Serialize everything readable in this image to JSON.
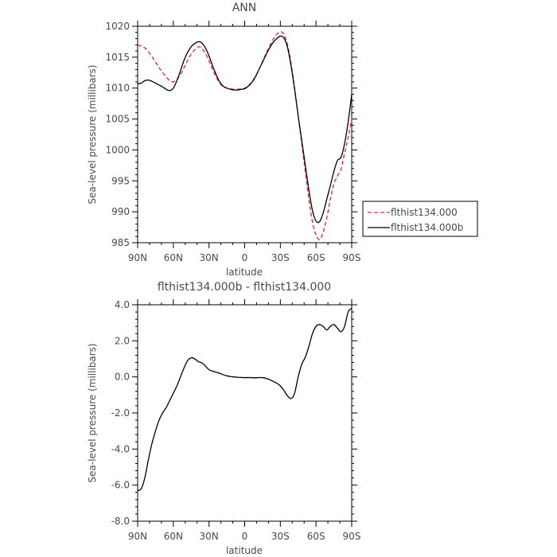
{
  "chart_data": [
    {
      "type": "line",
      "title": "ANN",
      "xlabel": "latitude",
      "ylabel": "Sea-level pressure (millibars)",
      "xlim": [
        90,
        -90
      ],
      "ylim": [
        985,
        1020
      ],
      "xticks": [
        {
          "value": 90,
          "label": "90N"
        },
        {
          "value": 60,
          "label": "60N"
        },
        {
          "value": 30,
          "label": "30N"
        },
        {
          "value": 0,
          "label": "0"
        },
        {
          "value": -30,
          "label": "30S"
        },
        {
          "value": -60,
          "label": "60S"
        },
        {
          "value": -90,
          "label": "90S"
        }
      ],
      "yticks": [
        {
          "value": 1020,
          "label": "1020"
        },
        {
          "value": 1015,
          "label": "1015"
        },
        {
          "value": 1010,
          "label": "1010"
        },
        {
          "value": 1005,
          "label": "1005"
        },
        {
          "value": 1000,
          "label": "1000"
        },
        {
          "value": 995,
          "label": "995"
        },
        {
          "value": 990,
          "label": "990"
        },
        {
          "value": 985,
          "label": "985"
        }
      ],
      "legend_position": "right",
      "series": [
        {
          "name": "flthist134.000",
          "color": "#e8262a",
          "dash": "dashed",
          "x": [
            90,
            87,
            84,
            81,
            78,
            75,
            72,
            69,
            66,
            63,
            60,
            57,
            54,
            51,
            48,
            45,
            42,
            39,
            36,
            33,
            30,
            27,
            24,
            21,
            18,
            15,
            12,
            9,
            6,
            3,
            0,
            -3,
            -6,
            -9,
            -12,
            -15,
            -18,
            -21,
            -24,
            -27,
            -30,
            -33,
            -36,
            -39,
            -42,
            -45,
            -48,
            -51,
            -54,
            -57,
            -60,
            -63,
            -66,
            -69,
            -72,
            -75,
            -78,
            -81,
            -84,
            -87,
            -90
          ],
          "y": [
            1017.0,
            1016.8,
            1016.5,
            1015.9,
            1015.1,
            1014.2,
            1013.3,
            1012.5,
            1011.8,
            1011.2,
            1011.0,
            1011.4,
            1012.2,
            1013.3,
            1014.5,
            1015.5,
            1016.2,
            1016.7,
            1016.4,
            1015.6,
            1014.4,
            1013.0,
            1011.8,
            1010.8,
            1010.2,
            1010.0,
            1009.9,
            1009.8,
            1009.8,
            1009.9,
            1010.0,
            1010.4,
            1011.0,
            1011.9,
            1013.0,
            1014.3,
            1015.6,
            1016.8,
            1017.9,
            1018.7,
            1019.1,
            1018.7,
            1017.0,
            1014.0,
            1010.0,
            1005.5,
            1001.0,
            996.5,
            992.0,
            988.3,
            986.2,
            985.5,
            986.7,
            989.0,
            992.0,
            994.5,
            995.8,
            996.9,
            999.5,
            1002.0,
            1005.0
          ]
        },
        {
          "name": "flthist134.000b",
          "color": "#000000",
          "dash": "solid",
          "x": [
            90,
            87,
            84,
            81,
            78,
            75,
            72,
            69,
            66,
            63,
            60,
            57,
            54,
            51,
            48,
            45,
            42,
            39,
            36,
            33,
            30,
            27,
            24,
            21,
            18,
            15,
            12,
            9,
            6,
            3,
            0,
            -3,
            -6,
            -9,
            -12,
            -15,
            -18,
            -21,
            -24,
            -27,
            -30,
            -33,
            -36,
            -39,
            -42,
            -45,
            -48,
            -51,
            -54,
            -57,
            -60,
            -63,
            -66,
            -69,
            -72,
            -75,
            -78,
            -81,
            -84,
            -87,
            -90
          ],
          "y": [
            1010.7,
            1010.8,
            1011.2,
            1011.3,
            1011.1,
            1010.8,
            1010.5,
            1010.2,
            1009.8,
            1009.6,
            1010.0,
            1011.2,
            1012.8,
            1014.5,
            1015.8,
            1016.7,
            1017.2,
            1017.5,
            1017.3,
            1016.5,
            1015.2,
            1013.6,
            1012.2,
            1011.0,
            1010.3,
            1010.0,
            1009.8,
            1009.7,
            1009.7,
            1009.8,
            1009.9,
            1010.3,
            1010.9,
            1011.8,
            1013.0,
            1014.2,
            1015.4,
            1016.5,
            1017.4,
            1018.0,
            1018.4,
            1018.1,
            1016.6,
            1013.6,
            1009.8,
            1005.5,
            1001.5,
            997.5,
            993.5,
            990.2,
            988.5,
            988.4,
            989.8,
            992.0,
            994.2,
            996.5,
            998.3,
            998.8,
            1001.0,
            1004.5,
            1009.0
          ]
        }
      ]
    },
    {
      "type": "line",
      "title": "flthist134.000b - flthist134.000",
      "xlabel": "latitude",
      "ylabel": "Sea-level pressure (millibars)",
      "xlim": [
        90,
        -90
      ],
      "ylim": [
        -8,
        4
      ],
      "xticks": [
        {
          "value": 90,
          "label": "90N"
        },
        {
          "value": 60,
          "label": "60N"
        },
        {
          "value": 30,
          "label": "30N"
        },
        {
          "value": 0,
          "label": "0"
        },
        {
          "value": -30,
          "label": "30S"
        },
        {
          "value": -60,
          "label": "60S"
        },
        {
          "value": -90,
          "label": "90S"
        }
      ],
      "yticks": [
        {
          "value": 4,
          "label": "4.0"
        },
        {
          "value": 2,
          "label": "2.0"
        },
        {
          "value": 0,
          "label": "0.0"
        },
        {
          "value": -2,
          "label": "-2.0"
        },
        {
          "value": -4,
          "label": "-4.0"
        },
        {
          "value": -6,
          "label": "-6.0"
        },
        {
          "value": -8,
          "label": "-8.0"
        }
      ],
      "series": [
        {
          "color": "#000000",
          "dash": "solid",
          "x": [
            90,
            87,
            84,
            81,
            78,
            75,
            72,
            69,
            66,
            63,
            60,
            57,
            54,
            51,
            48,
            45,
            42,
            39,
            36,
            33,
            30,
            27,
            24,
            21,
            18,
            15,
            12,
            9,
            6,
            3,
            0,
            -3,
            -6,
            -9,
            -12,
            -15,
            -18,
            -21,
            -24,
            -27,
            -30,
            -33,
            -36,
            -39,
            -42,
            -45,
            -48,
            -51,
            -54,
            -57,
            -60,
            -63,
            -66,
            -69,
            -72,
            -75,
            -78,
            -81,
            -84,
            -87,
            -90
          ],
          "y": [
            -6.3,
            -6.2,
            -5.6,
            -4.6,
            -3.7,
            -3.0,
            -2.4,
            -2.0,
            -1.7,
            -1.3,
            -0.9,
            -0.5,
            0.0,
            0.5,
            0.9,
            1.06,
            1.0,
            0.85,
            0.78,
            0.6,
            0.4,
            0.32,
            0.26,
            0.2,
            0.12,
            0.06,
            0.02,
            0.0,
            -0.02,
            -0.03,
            -0.04,
            -0.04,
            -0.04,
            -0.05,
            -0.04,
            -0.04,
            -0.08,
            -0.15,
            -0.25,
            -0.35,
            -0.5,
            -0.75,
            -1.05,
            -1.2,
            -0.9,
            0.0,
            0.7,
            1.1,
            1.7,
            2.4,
            2.8,
            2.9,
            2.8,
            2.6,
            2.8,
            2.9,
            2.7,
            2.5,
            2.8,
            3.6,
            3.8
          ]
        }
      ]
    }
  ]
}
